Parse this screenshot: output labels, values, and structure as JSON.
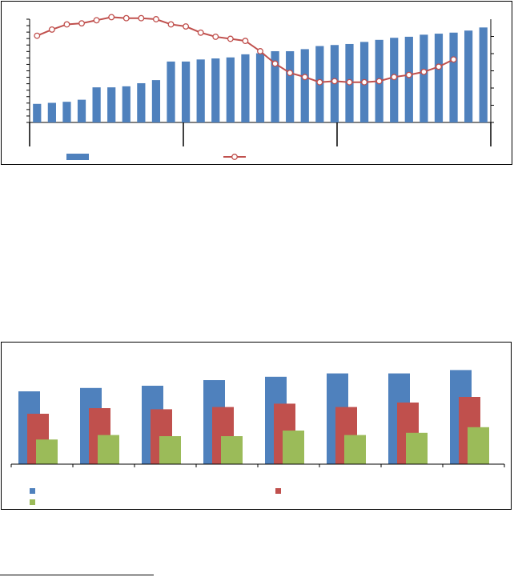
{
  "colors": {
    "bar_blue": "#4F81BD",
    "line_red": "#C0504D",
    "bar_red": "#C0504D",
    "bar_green": "#9BBB59",
    "axis": "#000000"
  },
  "chart_data": [
    {
      "type": "bar+line",
      "title": "",
      "xlabel": "",
      "ylabel": "",
      "y2label": "",
      "ylim": [
        0,
        100
      ],
      "y2lim": [
        0,
        100
      ],
      "x_groups": 3,
      "series": [
        {
          "kind": "bar",
          "axis": "left",
          "color": "#4F81BD",
          "values": [
            18,
            19,
            20,
            22,
            34,
            34,
            35,
            38,
            41,
            59,
            59,
            61,
            62,
            63,
            66,
            67,
            69,
            69,
            71,
            74,
            75,
            76,
            78,
            80,
            82,
            83,
            85,
            86,
            87,
            89,
            92
          ]
        },
        {
          "kind": "line",
          "axis": "right",
          "color": "#C0504D",
          "marker": "circle",
          "values": [
            84,
            90,
            95,
            96,
            99,
            102,
            101,
            101,
            100,
            95,
            93,
            87,
            83,
            81,
            79,
            69,
            57,
            48,
            44,
            39,
            40,
            39,
            39,
            40,
            44,
            46,
            49,
            54,
            61
          ]
        }
      ],
      "legend": {
        "placement": "bottom"
      }
    },
    {
      "type": "bar",
      "title": "",
      "xlabel": "",
      "ylabel": "",
      "ylim": [
        0,
        100
      ],
      "categories": [
        "",
        "",
        "",
        "",
        "",
        "",
        "",
        ""
      ],
      "series": [
        {
          "color": "#4F81BD",
          "values": [
            65,
            68,
            70,
            75,
            78,
            81,
            81,
            84
          ]
        },
        {
          "color": "#C0504D",
          "values": [
            45,
            50,
            49,
            51,
            54,
            51,
            55,
            60
          ]
        },
        {
          "color": "#9BBB59",
          "values": [
            22,
            26,
            25,
            25,
            30,
            26,
            28,
            33
          ]
        }
      ],
      "legend": {
        "placement": "bottom"
      }
    }
  ]
}
